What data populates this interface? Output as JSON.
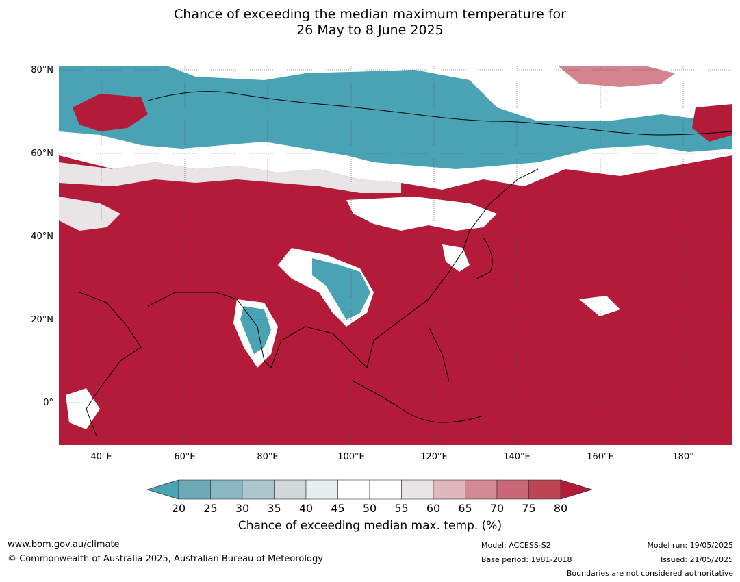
{
  "title": {
    "line1": "Chance of exceeding the median maximum temperature for",
    "line2": "26 May to 8 June 2025"
  },
  "map": {
    "lat_labels": [
      "80°N",
      "60°N",
      "40°N",
      "20°N",
      "0°"
    ],
    "lon_labels": [
      "40°E",
      "60°E",
      "80°E",
      "100°E",
      "120°E",
      "140°E",
      "160°E",
      "180°"
    ],
    "colors": {
      "very_high": "#b31b38",
      "high": "#c04454",
      "mid_high": "#d4848f",
      "neutral": "#ffffff",
      "low": "#4aa3b5",
      "mid_low": "#8bb9c4",
      "coastline": "#000000",
      "border": "#808080"
    }
  },
  "legend": {
    "ticks": [
      "20",
      "25",
      "30",
      "35",
      "40",
      "45",
      "50",
      "55",
      "60",
      "65",
      "70",
      "75",
      "80"
    ],
    "label": "Chance of exceeding median max. temp. (%)",
    "colors": [
      "#4aa3b5",
      "#6ea9b8",
      "#8ab7c4",
      "#abc6cc",
      "#d0d8da",
      "#e8eef0",
      "#ffffff",
      "#ffffff",
      "#e9e5e7",
      "#dfb7bd",
      "#d48a94",
      "#c86775",
      "#bd4453",
      "#b31b38"
    ]
  },
  "footer": {
    "url": "www.bom.gov.au/climate",
    "copyright": "© Commonwealth of Australia 2025, Australian Bureau of Meteorology",
    "model": "Model: ACCESS-S2",
    "base_period": "Base period: 1981-2018",
    "model_run": "Model run: 19/05/2025",
    "issued": "Issued: 21/05/2025",
    "disclaimer": "Boundaries are not considered authoritative"
  }
}
